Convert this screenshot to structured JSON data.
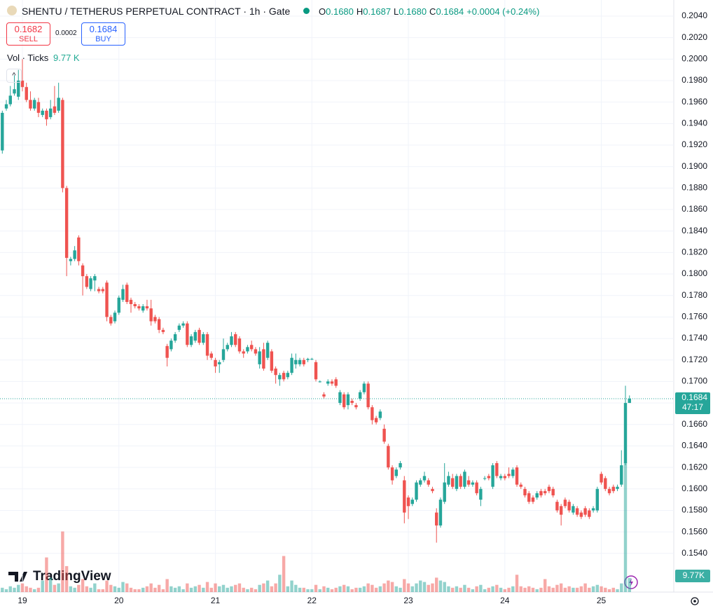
{
  "chart_data": {
    "type": "candlestick",
    "title": "SHENTU / TETHERUS PERPETUAL CONTRACT · 1h · Gate",
    "ohlc_legend": [
      {
        "key": "O",
        "value": "0.1680"
      },
      {
        "key": "H",
        "value": "0.1687"
      },
      {
        "key": "L",
        "value": "0.1680"
      },
      {
        "key": "C",
        "value": "0.1684"
      }
    ],
    "change": "+0.0004 (+0.24%)",
    "sell": {
      "price": "0.1682",
      "label": "SELL"
    },
    "spread": "0.0002",
    "buy": {
      "price": "0.1684",
      "label": "BUY"
    },
    "volume_title": "Vol · Ticks",
    "volume_legend": "9.77 K",
    "volume_axis_label": "9.77K",
    "brand": "TradingView",
    "up_color": "#26a69a",
    "down_color": "#ef5350",
    "grid": true,
    "ylim": [
      0.1504,
      0.2055
    ],
    "yticks": [
      {
        "value": 0.154,
        "label": "0.1540"
      },
      {
        "value": 0.156,
        "label": "0.1560"
      },
      {
        "value": 0.158,
        "label": "0.1580"
      },
      {
        "value": 0.16,
        "label": "0.1600"
      },
      {
        "value": 0.162,
        "label": "0.1620"
      },
      {
        "value": 0.164,
        "label": "0.1640"
      },
      {
        "value": 0.166,
        "label": "0.1660"
      },
      {
        "value": 0.168,
        "label": "0.1680"
      },
      {
        "value": 0.17,
        "label": "0.1700"
      },
      {
        "value": 0.172,
        "label": "0.1720"
      },
      {
        "value": 0.174,
        "label": "0.1740"
      },
      {
        "value": 0.176,
        "label": "0.1760"
      },
      {
        "value": 0.178,
        "label": "0.1780"
      },
      {
        "value": 0.18,
        "label": "0.1800"
      },
      {
        "value": 0.182,
        "label": "0.1820"
      },
      {
        "value": 0.184,
        "label": "0.1840"
      },
      {
        "value": 0.186,
        "label": "0.1860"
      },
      {
        "value": 0.188,
        "label": "0.1880"
      },
      {
        "value": 0.19,
        "label": "0.1900"
      },
      {
        "value": 0.192,
        "label": "0.1920"
      },
      {
        "value": 0.194,
        "label": "0.1940"
      },
      {
        "value": 0.196,
        "label": "0.1960"
      },
      {
        "value": 0.198,
        "label": "0.1980"
      },
      {
        "value": 0.2,
        "label": "0.2000"
      },
      {
        "value": 0.202,
        "label": "0.2020"
      },
      {
        "value": 0.204,
        "label": "0.2040"
      }
    ],
    "last_price": {
      "value": 0.1684,
      "label": "0.1684"
    },
    "countdown": "47:17",
    "y2lim": [
      0,
      100000
    ],
    "categories": [
      null,
      null,
      null,
      null,
      null,
      "19",
      null,
      null,
      null,
      null,
      null,
      null,
      null,
      null,
      null,
      null,
      null,
      null,
      null,
      null,
      null,
      null,
      null,
      null,
      null,
      null,
      null,
      null,
      null,
      "20",
      null,
      null,
      null,
      null,
      null,
      null,
      null,
      null,
      null,
      null,
      null,
      null,
      null,
      null,
      null,
      null,
      null,
      null,
      null,
      null,
      null,
      null,
      null,
      "21",
      null,
      null,
      null,
      null,
      null,
      null,
      null,
      null,
      null,
      null,
      null,
      null,
      null,
      null,
      null,
      null,
      null,
      null,
      null,
      null,
      null,
      null,
      null,
      "22",
      null,
      null,
      null,
      null,
      null,
      null,
      null,
      null,
      null,
      null,
      null,
      null,
      null,
      null,
      null,
      null,
      null,
      null,
      null,
      null,
      null,
      null,
      null,
      "23",
      null,
      null,
      null,
      null,
      null,
      null,
      null,
      null,
      null,
      null,
      null,
      null,
      null,
      null,
      null,
      null,
      null,
      null,
      null,
      null,
      null,
      null,
      null,
      "24",
      null,
      null,
      null,
      null,
      null,
      null,
      null,
      null,
      null,
      null,
      null,
      null,
      null,
      null,
      null,
      null,
      null,
      null,
      null,
      null,
      null,
      null,
      null,
      "25",
      null,
      null,
      null,
      null,
      null,
      null,
      null
    ],
    "ohlc": [
      [
        0.1915,
        0.1952,
        0.1912,
        0.195
      ],
      [
        0.1954,
        0.1962,
        0.1952,
        0.1958
      ],
      [
        0.1958,
        0.1975,
        0.1956,
        0.1966
      ],
      [
        0.1968,
        0.1985,
        0.1966,
        0.1972
      ],
      [
        0.1965,
        0.199,
        0.1962,
        0.198
      ],
      [
        0.198,
        0.2,
        0.197,
        0.1974
      ],
      [
        0.1974,
        0.1978,
        0.196,
        0.1962
      ],
      [
        0.1962,
        0.197,
        0.1952,
        0.1954
      ],
      [
        0.1954,
        0.1964,
        0.1952,
        0.1962
      ],
      [
        0.196,
        0.1964,
        0.1946,
        0.195
      ],
      [
        0.1948,
        0.1954,
        0.1946,
        0.1952
      ],
      [
        0.1952,
        0.1954,
        0.1938,
        0.1944
      ],
      [
        0.1946,
        0.1962,
        0.1944,
        0.1954
      ],
      [
        0.1956,
        0.1975,
        0.1948,
        0.195
      ],
      [
        0.1952,
        0.1978,
        0.195,
        0.1964
      ],
      [
        0.1962,
        0.1964,
        0.1876,
        0.188
      ],
      [
        0.188,
        0.1882,
        0.1798,
        0.1815
      ],
      [
        0.1812,
        0.1816,
        0.1808,
        0.1814
      ],
      [
        0.1814,
        0.1826,
        0.1812,
        0.1822
      ],
      [
        0.1834,
        0.1836,
        0.1808,
        0.1812
      ],
      [
        0.1808,
        0.181,
        0.178,
        0.1798
      ],
      [
        0.1798,
        0.18,
        0.1786,
        0.1788
      ],
      [
        0.1786,
        0.1798,
        0.1784,
        0.1796
      ],
      [
        0.1794,
        0.18,
        0.1784,
        0.1798
      ],
      [
        0.1786,
        0.1788,
        0.1782,
        0.1784
      ],
      [
        0.1786,
        0.1788,
        0.1782,
        0.1784
      ],
      [
        0.1792,
        0.1794,
        0.1756,
        0.176
      ],
      [
        0.176,
        0.1762,
        0.1752,
        0.1754
      ],
      [
        0.1756,
        0.1766,
        0.1754,
        0.1764
      ],
      [
        0.1764,
        0.178,
        0.1762,
        0.1778
      ],
      [
        0.1776,
        0.179,
        0.1774,
        0.1786
      ],
      [
        0.179,
        0.1792,
        0.1772,
        0.1774
      ],
      [
        0.1776,
        0.1778,
        0.1764,
        0.1772
      ],
      [
        0.1772,
        0.1774,
        0.1768,
        0.177
      ],
      [
        0.177,
        0.1772,
        0.1766,
        0.1768
      ],
      [
        0.1766,
        0.1772,
        0.1764,
        0.177
      ],
      [
        0.177,
        0.1776,
        0.1766,
        0.1768
      ],
      [
        0.1768,
        0.1776,
        0.1752,
        0.1756
      ],
      [
        0.176,
        0.1762,
        0.1754,
        0.1756
      ],
      [
        0.1758,
        0.176,
        0.1745,
        0.1748
      ],
      [
        0.1748,
        0.175,
        0.1744,
        0.1746
      ],
      [
        0.1733,
        0.1735,
        0.1714,
        0.1722
      ],
      [
        0.173,
        0.174,
        0.1728,
        0.1738
      ],
      [
        0.1738,
        0.1746,
        0.1736,
        0.1744
      ],
      [
        0.1748,
        0.1754,
        0.1746,
        0.1752
      ],
      [
        0.1752,
        0.1756,
        0.175,
        0.1754
      ],
      [
        0.1754,
        0.1756,
        0.1732,
        0.1734
      ],
      [
        0.1734,
        0.1744,
        0.1732,
        0.1742
      ],
      [
        0.1738,
        0.1748,
        0.1736,
        0.1746
      ],
      [
        0.1748,
        0.175,
        0.1734,
        0.1736
      ],
      [
        0.1736,
        0.1746,
        0.1734,
        0.1744
      ],
      [
        0.1744,
        0.1746,
        0.172,
        0.1724
      ],
      [
        0.1726,
        0.1728,
        0.172,
        0.1722
      ],
      [
        0.172,
        0.1722,
        0.1708,
        0.1714
      ],
      [
        0.1716,
        0.172,
        0.1708,
        0.1718
      ],
      [
        0.172,
        0.174,
        0.1718,
        0.173
      ],
      [
        0.173,
        0.1736,
        0.1728,
        0.1734
      ],
      [
        0.1734,
        0.1746,
        0.1732,
        0.1742
      ],
      [
        0.1744,
        0.1746,
        0.1732,
        0.1734
      ],
      [
        0.174,
        0.1742,
        0.1726,
        0.1728
      ],
      [
        0.1728,
        0.173,
        0.1722,
        0.1726
      ],
      [
        0.1728,
        0.1734,
        0.1726,
        0.1732
      ],
      [
        0.1734,
        0.1738,
        0.1728,
        0.173
      ],
      [
        0.173,
        0.1732,
        0.1724,
        0.1726
      ],
      [
        0.1716,
        0.1732,
        0.1712,
        0.1728
      ],
      [
        0.173,
        0.1736,
        0.171,
        0.1712
      ],
      [
        0.1722,
        0.1738,
        0.172,
        0.1736
      ],
      [
        0.1728,
        0.173,
        0.1708,
        0.171
      ],
      [
        0.1712,
        0.1714,
        0.1698,
        0.1706
      ],
      [
        0.1702,
        0.1708,
        0.1696,
        0.1706
      ],
      [
        0.1708,
        0.171,
        0.17,
        0.1702
      ],
      [
        0.1704,
        0.171,
        0.1702,
        0.1708
      ],
      [
        0.1708,
        0.1726,
        0.1706,
        0.1722
      ],
      [
        0.1716,
        0.1726,
        0.1712,
        0.172
      ],
      [
        0.1716,
        0.1722,
        0.1714,
        0.172
      ],
      [
        0.172,
        0.1722,
        0.1714,
        0.1716
      ],
      [
        0.172,
        0.1722,
        0.1718,
        0.1721
      ],
      [
        0.1721,
        0.1722,
        0.172,
        0.1721
      ],
      [
        0.1718,
        0.172,
        0.17,
        0.1702
      ],
      [
        0.17,
        0.1701,
        0.1699,
        0.17
      ],
      [
        0.1688,
        0.169,
        0.1684,
        0.1686
      ],
      [
        0.1698,
        0.1702,
        0.1696,
        0.17
      ],
      [
        0.17,
        0.1702,
        0.1696,
        0.1698
      ],
      [
        0.1702,
        0.1704,
        0.1694,
        0.1696
      ],
      [
        0.168,
        0.1692,
        0.1678,
        0.169
      ],
      [
        0.1688,
        0.169,
        0.1674,
        0.1676
      ],
      [
        0.1678,
        0.169,
        0.1674,
        0.1688
      ],
      [
        0.1682,
        0.1684,
        0.1678,
        0.168
      ],
      [
        0.1678,
        0.168,
        0.1674,
        0.1676
      ],
      [
        0.1684,
        0.1692,
        0.1682,
        0.169
      ],
      [
        0.169,
        0.17,
        0.1688,
        0.1698
      ],
      [
        0.1698,
        0.17,
        0.1674,
        0.1676
      ],
      [
        0.1676,
        0.1678,
        0.166,
        0.1664
      ],
      [
        0.1666,
        0.1668,
        0.166,
        0.1662
      ],
      [
        0.1666,
        0.1674,
        0.1664,
        0.1672
      ],
      [
        0.1656,
        0.166,
        0.1642,
        0.1644
      ],
      [
        0.164,
        0.1642,
        0.1618,
        0.162
      ],
      [
        0.162,
        0.1622,
        0.1604,
        0.1608
      ],
      [
        0.1612,
        0.162,
        0.161,
        0.1618
      ],
      [
        0.162,
        0.1626,
        0.1618,
        0.1624
      ],
      [
        0.1608,
        0.1612,
        0.1568,
        0.1578
      ],
      [
        0.1592,
        0.1594,
        0.1572,
        0.1584
      ],
      [
        0.1586,
        0.1592,
        0.1584,
        0.159
      ],
      [
        0.159,
        0.1608,
        0.1588,
        0.1606
      ],
      [
        0.1604,
        0.161,
        0.1602,
        0.1608
      ],
      [
        0.1608,
        0.1616,
        0.1606,
        0.1612
      ],
      [
        0.1608,
        0.161,
        0.1602,
        0.1604
      ],
      [
        0.16,
        0.1602,
        0.1596,
        0.1598
      ],
      [
        0.1578,
        0.1582,
        0.155,
        0.1566
      ],
      [
        0.1566,
        0.1592,
        0.1564,
        0.159
      ],
      [
        0.1588,
        0.1624,
        0.1586,
        0.1606
      ],
      [
        0.1604,
        0.1616,
        0.1602,
        0.1612
      ],
      [
        0.161,
        0.1614,
        0.16,
        0.1602
      ],
      [
        0.16,
        0.1614,
        0.1598,
        0.1612
      ],
      [
        0.1612,
        0.1614,
        0.16,
        0.1602
      ],
      [
        0.1602,
        0.1618,
        0.16,
        0.1616
      ],
      [
        0.1608,
        0.1612,
        0.1602,
        0.1604
      ],
      [
        0.1604,
        0.1608,
        0.1602,
        0.1606
      ],
      [
        0.1606,
        0.1608,
        0.1594,
        0.1596
      ],
      [
        0.159,
        0.1602,
        0.1584,
        0.16
      ],
      [
        0.161,
        0.1612,
        0.1608,
        0.161
      ],
      [
        0.1612,
        0.1614,
        0.1608,
        0.161
      ],
      [
        0.1602,
        0.1624,
        0.16,
        0.1622
      ],
      [
        0.1624,
        0.1626,
        0.161,
        0.1612
      ],
      [
        0.161,
        0.1614,
        0.1608,
        0.1612
      ],
      [
        0.1612,
        0.1614,
        0.1608,
        0.161
      ],
      [
        0.1614,
        0.162,
        0.161,
        0.1612
      ],
      [
        0.1612,
        0.162,
        0.161,
        0.1618
      ],
      [
        0.162,
        0.1622,
        0.1602,
        0.1604
      ],
      [
        0.1604,
        0.1606,
        0.16,
        0.1602
      ],
      [
        0.16,
        0.1602,
        0.1592,
        0.1594
      ],
      [
        0.1596,
        0.1598,
        0.1586,
        0.1588
      ],
      [
        0.1592,
        0.1594,
        0.1586,
        0.1588
      ],
      [
        0.1592,
        0.1598,
        0.159,
        0.1596
      ],
      [
        0.1598,
        0.16,
        0.1592,
        0.1594
      ],
      [
        0.1598,
        0.16,
        0.1594,
        0.1596
      ],
      [
        0.1602,
        0.1604,
        0.1596,
        0.1598
      ],
      [
        0.16,
        0.1602,
        0.1592,
        0.1594
      ],
      [
        0.1588,
        0.159,
        0.1578,
        0.158
      ],
      [
        0.1584,
        0.1586,
        0.1566,
        0.1576
      ],
      [
        0.159,
        0.1592,
        0.1582,
        0.1584
      ],
      [
        0.1588,
        0.159,
        0.1578,
        0.158
      ],
      [
        0.1578,
        0.1586,
        0.1576,
        0.1584
      ],
      [
        0.1582,
        0.1584,
        0.1574,
        0.1576
      ],
      [
        0.1578,
        0.158,
        0.1572,
        0.1574
      ],
      [
        0.1582,
        0.1584,
        0.1574,
        0.1576
      ],
      [
        0.158,
        0.1582,
        0.1572,
        0.1574
      ],
      [
        0.158,
        0.1584,
        0.1578,
        0.1582
      ],
      [
        0.158,
        0.1602,
        0.1578,
        0.16
      ],
      [
        0.1614,
        0.1616,
        0.1604,
        0.1606
      ],
      [
        0.161,
        0.1612,
        0.1598,
        0.16
      ],
      [
        0.16,
        0.1602,
        0.1594,
        0.1596
      ],
      [
        0.1602,
        0.1604,
        0.1596,
        0.1598
      ],
      [
        0.16,
        0.1604,
        0.1598,
        0.1602
      ],
      [
        0.1604,
        0.1636,
        0.1602,
        0.1622
      ],
      [
        0.1624,
        0.1696,
        0.1622,
        0.168
      ],
      [
        0.168,
        0.1687,
        0.168,
        0.1684
      ]
    ],
    "volume": [
      3000,
      2000,
      4000,
      3000,
      5000,
      6000,
      4000,
      3000,
      2000,
      3000,
      8000,
      24000,
      10000,
      5000,
      6000,
      42000,
      18000,
      4000,
      3000,
      5000,
      9000,
      4000,
      3000,
      6000,
      2000,
      2000,
      8000,
      5000,
      4000,
      3000,
      7000,
      6000,
      3000,
      2000,
      2000,
      3000,
      4000,
      6000,
      3000,
      5000,
      2000,
      9000,
      4000,
      3000,
      4000,
      2000,
      6000,
      3000,
      4000,
      5000,
      3000,
      7000,
      3000,
      6000,
      4000,
      5000,
      3000,
      4000,
      5000,
      6000,
      3000,
      2000,
      3000,
      2000,
      5000,
      6000,
      8000,
      4000,
      6000,
      12000,
      25000,
      4000,
      8000,
      5000,
      3000,
      3000,
      2000,
      2000,
      5000,
      2000,
      4000,
      3000,
      2000,
      3000,
      4000,
      5000,
      4000,
      2000,
      3000,
      3000,
      4000,
      6000,
      5000,
      3000,
      4000,
      6000,
      8000,
      7000,
      4000,
      3000,
      9000,
      6000,
      4000,
      6000,
      8000,
      7000,
      5000,
      6000,
      10000,
      8000,
      7000,
      4000,
      3000,
      4000,
      3000,
      5000,
      3000,
      2000,
      4000,
      5000,
      2000,
      3000,
      4000,
      5000,
      3000,
      2000,
      3000,
      4000,
      12000,
      4000,
      3000,
      4000,
      3000,
      2000,
      3000,
      9000,
      4000,
      3000,
      5000,
      6000,
      3000,
      4000,
      3000,
      3000,
      4000,
      6000,
      3000,
      4000,
      5000,
      4000,
      3000,
      2000,
      3000,
      2000,
      6000,
      90000,
      9770
    ]
  }
}
